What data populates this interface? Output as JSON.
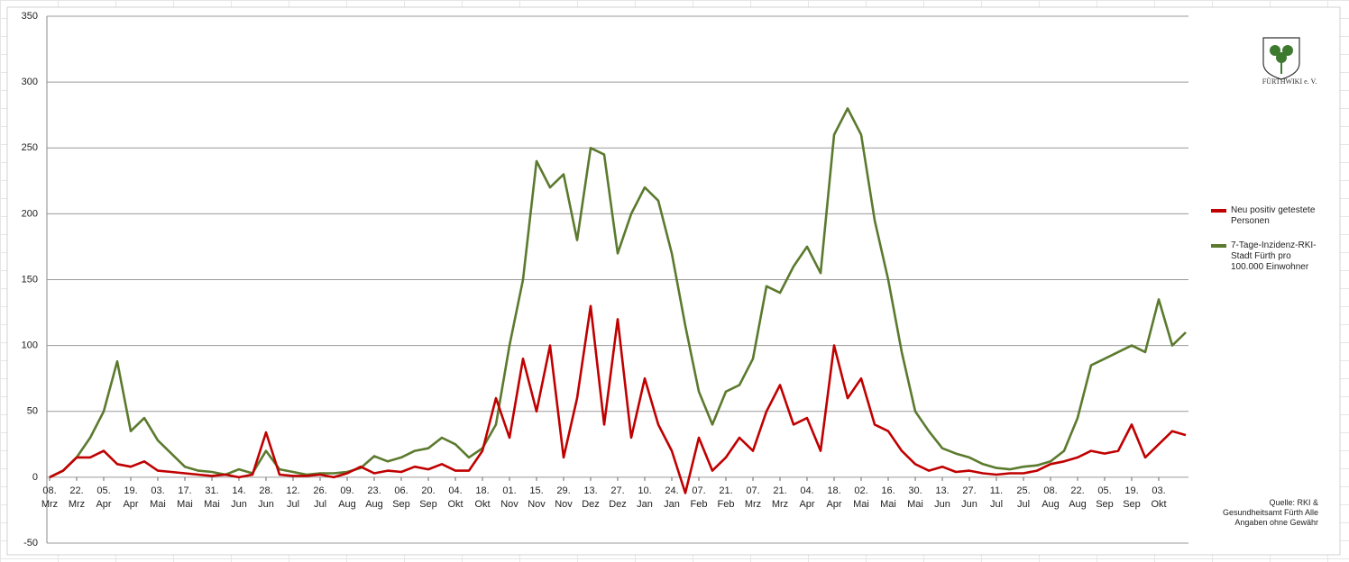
{
  "chart_data": {
    "type": "line",
    "x": [
      0,
      7,
      14,
      21,
      28,
      35,
      42,
      49,
      56,
      63,
      70,
      77,
      84,
      91,
      98,
      105,
      112,
      119,
      126,
      133,
      140,
      147,
      154,
      161,
      168,
      175,
      182,
      189,
      196,
      203,
      210,
      217,
      224,
      231,
      238,
      245,
      252,
      259,
      266,
      273,
      280,
      287,
      294,
      301,
      308,
      315,
      322,
      329,
      336,
      343,
      350,
      357,
      364,
      371,
      378,
      385,
      392,
      399,
      406,
      413,
      420,
      427,
      434,
      441,
      448,
      455,
      462,
      469,
      476,
      483,
      490,
      497,
      504,
      511,
      518,
      525,
      532,
      539,
      546,
      553,
      560,
      567,
      574,
      581,
      588
    ],
    "series": [
      {
        "name": "Neu positiv getestete Personen",
        "color": "#c00000",
        "values": [
          0,
          5,
          15,
          15,
          20,
          10,
          8,
          12,
          5,
          4,
          3,
          2,
          1,
          2,
          0,
          2,
          34,
          2,
          1,
          1,
          2,
          0,
          3,
          8,
          3,
          5,
          4,
          8,
          6,
          10,
          5,
          5,
          20,
          60,
          30,
          90,
          50,
          100,
          15,
          60,
          130,
          40,
          120,
          30,
          75,
          40,
          20,
          -12,
          30,
          5,
          15,
          30,
          20,
          50,
          70,
          40,
          45,
          20,
          100,
          60,
          75,
          40,
          35,
          20,
          10,
          5,
          8,
          4,
          5,
          3,
          2,
          3,
          3,
          5,
          10,
          12,
          15,
          20,
          18,
          20,
          40,
          15,
          25,
          35,
          32
        ]
      },
      {
        "name": "7-Tage-Inzidenz-RKI-Stadt Fürth pro 100.000 Einwohner",
        "color": "#5b7a2e",
        "values": [
          0,
          5,
          15,
          30,
          50,
          88,
          35,
          45,
          28,
          18,
          8,
          5,
          4,
          2,
          6,
          3,
          20,
          6,
          4,
          2,
          3,
          3,
          4,
          7,
          16,
          12,
          15,
          20,
          22,
          30,
          25,
          15,
          22,
          40,
          100,
          150,
          240,
          220,
          230,
          180,
          250,
          245,
          170,
          200,
          220,
          210,
          170,
          115,
          65,
          40,
          65,
          70,
          90,
          145,
          140,
          160,
          175,
          155,
          260,
          280,
          260,
          195,
          150,
          95,
          50,
          35,
          22,
          18,
          15,
          10,
          7,
          6,
          8,
          9,
          12,
          20,
          45,
          85,
          90,
          95,
          100,
          95,
          135,
          100,
          110
        ]
      }
    ],
    "xlim": [
      -1.4,
      589.4
    ],
    "xticks": [
      {
        "value": 0,
        "label": "08. Mrz"
      },
      {
        "value": 14,
        "label": "22. Mrz"
      },
      {
        "value": 28,
        "label": "05. Apr"
      },
      {
        "value": 42,
        "label": "19. Apr"
      },
      {
        "value": 56,
        "label": "03. Mai"
      },
      {
        "value": 70,
        "label": "17. Mai"
      },
      {
        "value": 84,
        "label": "31. Mai"
      },
      {
        "value": 98,
        "label": "14. Jun"
      },
      {
        "value": 112,
        "label": "28. Jun"
      },
      {
        "value": 126,
        "label": "12. Jul"
      },
      {
        "value": 140,
        "label": "26. Jul"
      },
      {
        "value": 154,
        "label": "09. Aug"
      },
      {
        "value": 168,
        "label": "23. Aug"
      },
      {
        "value": 182,
        "label": "06. Sep"
      },
      {
        "value": 196,
        "label": "20. Sep"
      },
      {
        "value": 210,
        "label": "04. Okt"
      },
      {
        "value": 224,
        "label": "18. Okt"
      },
      {
        "value": 238,
        "label": "01. Nov"
      },
      {
        "value": 252,
        "label": "15. Nov"
      },
      {
        "value": 266,
        "label": "29. Nov"
      },
      {
        "value": 280,
        "label": "13. Dez"
      },
      {
        "value": 294,
        "label": "27. Dez"
      },
      {
        "value": 308,
        "label": "10. Jan"
      },
      {
        "value": 322,
        "label": "24. Jan"
      },
      {
        "value": 336,
        "label": "07. Feb"
      },
      {
        "value": 350,
        "label": "21. Feb"
      },
      {
        "value": 364,
        "label": "07. Mrz"
      },
      {
        "value": 378,
        "label": "21. Mrz"
      },
      {
        "value": 392,
        "label": "04. Apr"
      },
      {
        "value": 406,
        "label": "18. Apr"
      },
      {
        "value": 420,
        "label": "02. Mai"
      },
      {
        "value": 434,
        "label": "16. Mai"
      },
      {
        "value": 448,
        "label": "30. Mai"
      },
      {
        "value": 462,
        "label": "13. Jun"
      },
      {
        "value": 476,
        "label": "27. Jun"
      },
      {
        "value": 490,
        "label": "11. Jul"
      },
      {
        "value": 504,
        "label": "25. Jul"
      },
      {
        "value": 518,
        "label": "08. Aug"
      },
      {
        "value": 532,
        "label": "22. Aug"
      },
      {
        "value": 546,
        "label": "05. Sep"
      },
      {
        "value": 560,
        "label": "19. Sep"
      },
      {
        "value": 574,
        "label": "03. Okt"
      }
    ],
    "ylim": [
      -50,
      350
    ],
    "yticks": [
      -50,
      0,
      50,
      100,
      150,
      200,
      250,
      300,
      350
    ],
    "grid": true,
    "legend": "right",
    "annotation": "Quelle: RKI & Gesundheitsamt Fürth Alle Angaben ohne Gewähr",
    "logo_text": "FÜRTHWIKI e. V."
  }
}
